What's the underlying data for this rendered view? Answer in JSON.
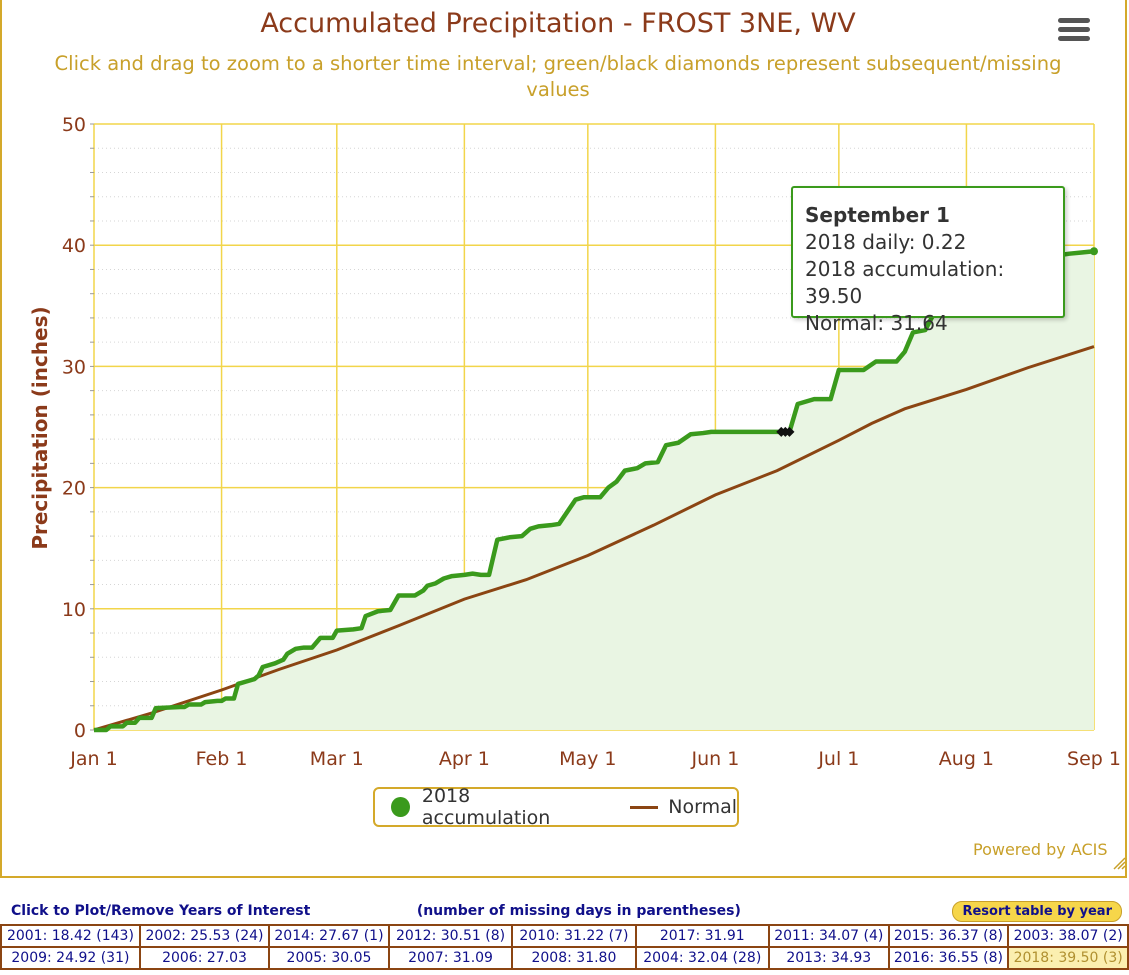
{
  "chart_data": {
    "type": "area",
    "title": "Accumulated Precipitation - FROST 3NE, WV",
    "subtitle": "Click and drag to zoom to a shorter time interval; green/black diamonds represent subsequent/missing values",
    "ylabel": "Precipitation (inches)",
    "xlabel": "",
    "ylim": [
      0,
      50
    ],
    "yticks": [
      0,
      10,
      20,
      30,
      40,
      50
    ],
    "xticks": [
      {
        "day": 1,
        "label": "Jan 1"
      },
      {
        "day": 32,
        "label": "Feb 1"
      },
      {
        "day": 60,
        "label": "Mar 1"
      },
      {
        "day": 91,
        "label": "Apr 1"
      },
      {
        "day": 121,
        "label": "May 1"
      },
      {
        "day": 152,
        "label": "Jun 1"
      },
      {
        "day": 182,
        "label": "Jul 1"
      },
      {
        "day": 213,
        "label": "Aug 1"
      },
      {
        "day": 244,
        "label": "Sep 1"
      }
    ],
    "grid": true,
    "legend_position": "bottom-center",
    "series": [
      {
        "name": "2018 accumulation",
        "color": "#3a9a1c",
        "fill": "#e9f5e3",
        "points": [
          [
            1,
            0
          ],
          [
            4,
            0
          ],
          [
            5,
            0.3
          ],
          [
            8,
            0.3
          ],
          [
            9,
            0.6
          ],
          [
            11,
            0.6
          ],
          [
            12,
            1
          ],
          [
            15,
            1
          ],
          [
            16,
            1.8
          ],
          [
            22,
            1.9
          ],
          [
            23,
            1.9
          ],
          [
            24,
            2.1
          ],
          [
            27,
            2.1
          ],
          [
            28,
            2.3
          ],
          [
            31,
            2.4
          ],
          [
            32,
            2.4
          ],
          [
            33,
            2.6
          ],
          [
            35,
            2.6
          ],
          [
            36,
            3.8
          ],
          [
            38,
            4.0
          ],
          [
            40,
            4.2
          ],
          [
            41,
            4.5
          ],
          [
            42,
            5.2
          ],
          [
            45,
            5.5
          ],
          [
            47,
            5.8
          ],
          [
            48,
            6.3
          ],
          [
            50,
            6.7
          ],
          [
            52,
            6.8
          ],
          [
            54,
            6.8
          ],
          [
            56,
            7.6
          ],
          [
            59,
            7.6
          ],
          [
            60,
            8.2
          ],
          [
            64,
            8.3
          ],
          [
            66,
            8.4
          ],
          [
            67,
            9.4
          ],
          [
            70,
            9.8
          ],
          [
            73,
            9.9
          ],
          [
            75,
            11.1
          ],
          [
            79,
            11.1
          ],
          [
            81,
            11.5
          ],
          [
            82,
            11.9
          ],
          [
            84,
            12.1
          ],
          [
            86,
            12.5
          ],
          [
            88,
            12.7
          ],
          [
            91,
            12.8
          ],
          [
            93,
            12.9
          ],
          [
            95,
            12.8
          ],
          [
            97,
            12.8
          ],
          [
            99,
            15.7
          ],
          [
            102,
            15.9
          ],
          [
            105,
            16.0
          ],
          [
            107,
            16.6
          ],
          [
            109,
            16.8
          ],
          [
            112,
            16.9
          ],
          [
            114,
            17.0
          ],
          [
            118,
            19.0
          ],
          [
            120,
            19.2
          ],
          [
            124,
            19.2
          ],
          [
            126,
            20.0
          ],
          [
            128,
            20.5
          ],
          [
            130,
            21.4
          ],
          [
            133,
            21.6
          ],
          [
            135,
            22.0
          ],
          [
            138,
            22.1
          ],
          [
            140,
            23.5
          ],
          [
            143,
            23.7
          ],
          [
            146,
            24.4
          ],
          [
            149,
            24.5
          ],
          [
            151,
            24.6
          ],
          [
            170,
            24.6
          ],
          [
            172,
            26.9
          ],
          [
            176,
            27.3
          ],
          [
            180,
            27.3
          ],
          [
            182,
            29.7
          ],
          [
            188,
            29.7
          ],
          [
            191,
            30.4
          ],
          [
            196,
            30.4
          ],
          [
            198,
            31.2
          ],
          [
            200,
            32.8
          ],
          [
            203,
            33.0
          ],
          [
            205,
            34.3
          ],
          [
            208,
            35.3
          ],
          [
            210,
            36.2
          ],
          [
            215,
            36.3
          ],
          [
            217,
            36.8
          ],
          [
            220,
            37.5
          ],
          [
            222,
            38.0
          ],
          [
            228,
            38.2
          ],
          [
            232,
            38.8
          ],
          [
            236,
            39.2
          ],
          [
            238,
            39.3
          ],
          [
            241,
            39.4
          ],
          [
            244,
            39.5
          ]
        ]
      },
      {
        "name": "Normal",
        "color": "#8b4513",
        "points": [
          [
            1,
            0
          ],
          [
            15,
            1.4
          ],
          [
            32,
            3.3
          ],
          [
            46,
            5.0
          ],
          [
            60,
            6.6
          ],
          [
            75,
            8.6
          ],
          [
            91,
            10.8
          ],
          [
            106,
            12.4
          ],
          [
            121,
            14.4
          ],
          [
            137,
            16.9
          ],
          [
            152,
            19.4
          ],
          [
            167,
            21.4
          ],
          [
            182,
            23.9
          ],
          [
            190,
            25.3
          ],
          [
            198,
            26.5
          ],
          [
            213,
            28.1
          ],
          [
            228,
            29.9
          ],
          [
            244,
            31.64
          ]
        ]
      }
    ],
    "missing_values": [
      [
        168,
        24.6
      ],
      [
        169,
        24.6
      ],
      [
        170,
        24.6
      ]
    ],
    "tooltip": {
      "title": "September 1",
      "daily": "2018 daily: 0.22",
      "accum": "2018 accumulation: 39.50",
      "normal": "Normal: 31.64"
    }
  },
  "legend": {
    "series1": "2018 accumulation",
    "series2": "Normal"
  },
  "credit": "Powered by ACIS",
  "table": {
    "header_left": "Click to Plot/Remove Years of Interest",
    "header_mid": "(number of missing days in parentheses)",
    "resort_label": "Resort table by year",
    "rows": [
      [
        "2001: 18.42 (143)",
        "2002: 25.53 (24)",
        "2014: 27.67 (1)",
        "2012: 30.51 (8)",
        "2010: 31.22 (7)",
        "2017: 31.91",
        "2011: 34.07 (4)",
        "2015: 36.37 (8)",
        "2003: 38.07 (2)"
      ],
      [
        "2009: 24.92 (31)",
        "2006: 27.03",
        "2005: 30.05",
        "2007: 31.09",
        "2008: 31.80",
        "2004: 32.04 (28)",
        "2013: 34.93",
        "2016: 36.55 (8)",
        "2018: 39.50 (3)"
      ]
    ]
  }
}
